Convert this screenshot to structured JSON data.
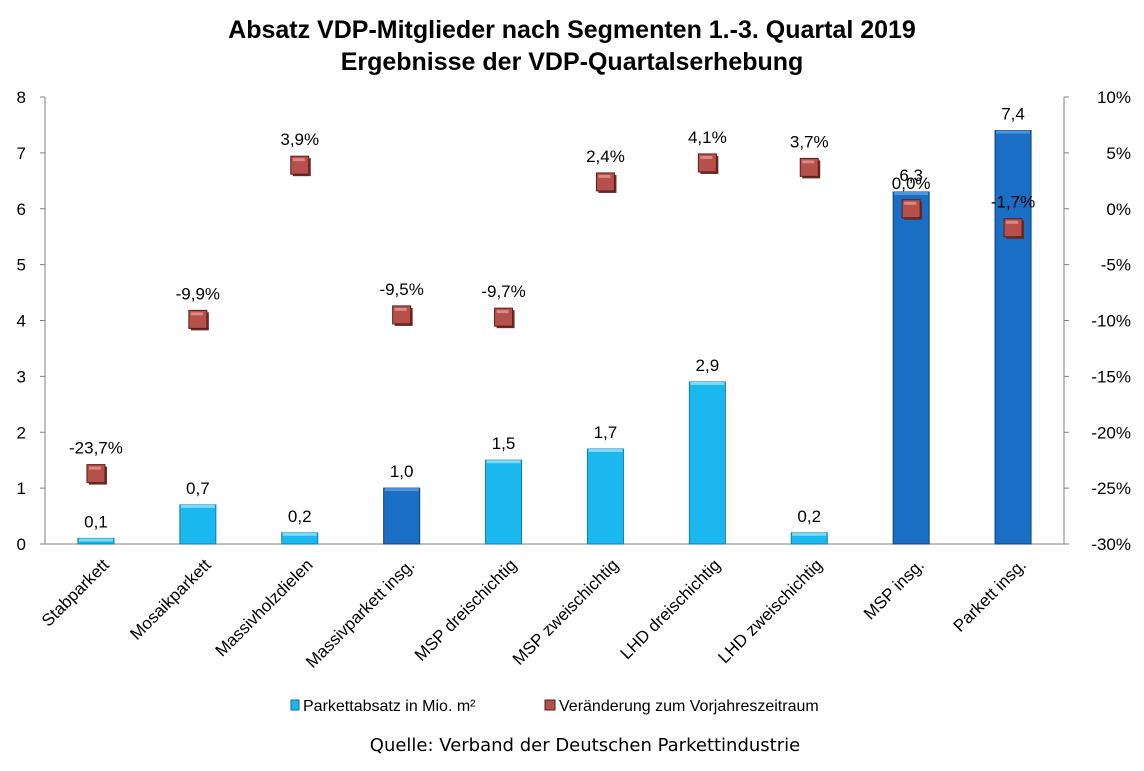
{
  "chart_data": {
    "type": "bar",
    "title_line1": "Absatz VDP-Mitglieder nach Segmenten 1.-3. Quartal 2019",
    "title_line2": "Ergebnisse der VDP-Quartalserhebung",
    "source": "Quelle: Verband der Deutschen Parkettindustrie",
    "categories": [
      "Stabparkett",
      "Mosaikparkett",
      "Massivholzdielen",
      "Massivparkett insg.",
      "MSP dreischichtig",
      "MSP zweischichtig",
      "LHD dreischichtig",
      "LHD zweischichtig",
      "MSP insg.",
      "Parkett insg."
    ],
    "bar_series": {
      "name": "Parkettabsatz in Mio. m²",
      "values": [
        0.1,
        0.7,
        0.2,
        1.0,
        1.5,
        1.7,
        2.9,
        0.2,
        6.3,
        7.4
      ],
      "labels": [
        "0,1",
        "0,7",
        "0,2",
        "1,0",
        "1,5",
        "1,7",
        "2,9",
        "0,2",
        "6,3",
        "7,4"
      ],
      "color_light": "#1ab8ef",
      "color_dark": "#1a6fc4",
      "dark_indices": [
        3,
        8,
        9
      ]
    },
    "marker_series": {
      "name": "Veränderung zum Vorjahreszeitraum",
      "values": [
        -23.7,
        -9.9,
        3.9,
        -9.5,
        -9.7,
        2.4,
        4.1,
        3.7,
        0.0,
        -1.7
      ],
      "labels": [
        "-23,7%",
        "-9,9%",
        "3,9%",
        "-9,5%",
        "-9,7%",
        "2,4%",
        "4,1%",
        "3,7%",
        "0,0%",
        "-1,7%"
      ],
      "color": "#b5504a"
    },
    "y_left": {
      "min": 0,
      "max": 8,
      "ticks": [
        "0",
        "1",
        "2",
        "3",
        "4",
        "5",
        "6",
        "7",
        "8"
      ]
    },
    "y_right": {
      "min": -30,
      "max": 10,
      "ticks": [
        "-30%",
        "-25%",
        "-20%",
        "-15%",
        "-10%",
        "-5%",
        "0%",
        "5%",
        "10%"
      ]
    },
    "legend_position": "bottom"
  }
}
